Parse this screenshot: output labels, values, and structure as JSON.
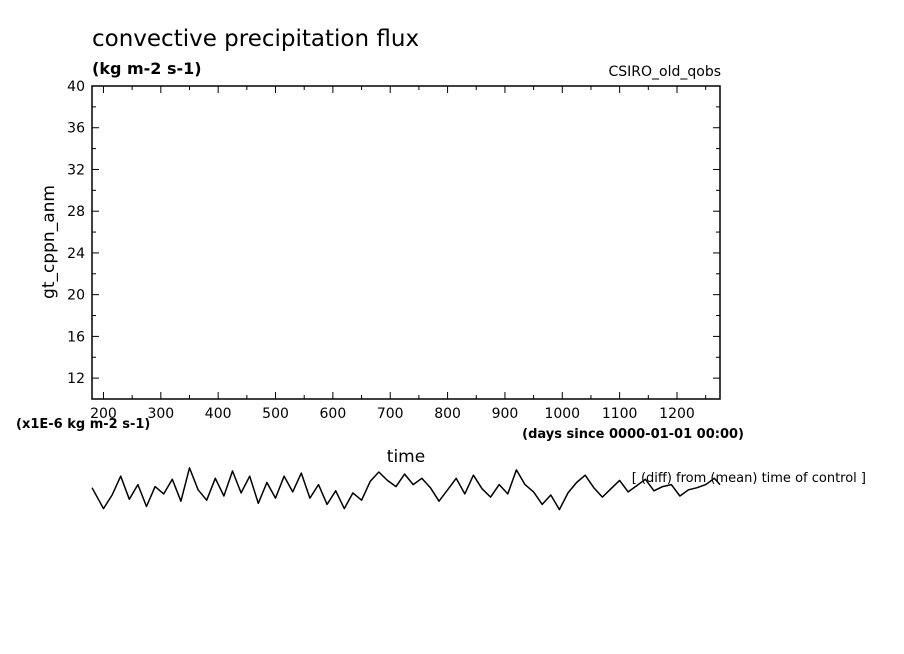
{
  "chart_data": {
    "type": "line",
    "title": "convective precipitation flux",
    "units_label": "(kg m-2 s-1)",
    "source_label": "CSIRO_old_qobs",
    "ylabel": "gt_cppn_anm",
    "xlabel": "time",
    "x_units": "(days since 0000-01-01 00:00)",
    "scale_note": "(x1E-6 kg m-2 s-1)",
    "diff_note": "[ (diff) from (mean) time of control ]",
    "xlim": [
      180,
      1275
    ],
    "ylim": [
      10,
      40
    ],
    "x_ticks": [
      200,
      300,
      400,
      500,
      600,
      700,
      800,
      900,
      1000,
      1100,
      1200
    ],
    "y_ticks": [
      12,
      16,
      20,
      24,
      28,
      32,
      36,
      40
    ],
    "grid": false,
    "series": [
      {
        "x": [
          180,
          200,
          215,
          230,
          245,
          260,
          275,
          290,
          305,
          320,
          335,
          350,
          365,
          380,
          395,
          410,
          425,
          440,
          455,
          470,
          485,
          500,
          515,
          530,
          545,
          560,
          575,
          590,
          605,
          620,
          635,
          650,
          665,
          680,
          695,
          710,
          725,
          740,
          755,
          770,
          785,
          800,
          815,
          830,
          845,
          860,
          875,
          890,
          905,
          920,
          935,
          950,
          965,
          980,
          995,
          1010,
          1025,
          1040,
          1055,
          1070,
          1085,
          1100,
          1115,
          1130,
          1145,
          1160,
          1175,
          1190,
          1205,
          1220,
          1235,
          1250,
          1265,
          1275
        ],
        "values": [
          1.5,
          -0.5,
          0.8,
          2.6,
          0.4,
          1.8,
          -0.3,
          1.6,
          0.9,
          2.3,
          0.2,
          3.4,
          1.3,
          0.3,
          2.4,
          0.7,
          3.1,
          1.0,
          2.6,
          0.0,
          2.0,
          0.5,
          2.6,
          1.1,
          2.9,
          0.5,
          1.8,
          -0.1,
          1.2,
          -0.5,
          1.0,
          0.3,
          2.1,
          3.0,
          2.2,
          1.6,
          2.8,
          1.8,
          2.4,
          1.5,
          0.2,
          1.3,
          2.4,
          0.9,
          2.7,
          1.4,
          0.6,
          1.8,
          0.9,
          3.2,
          1.8,
          1.1,
          -0.1,
          0.8,
          -0.6,
          1.0,
          2.0,
          2.7,
          1.5,
          0.6,
          1.4,
          2.2,
          1.1,
          1.7,
          2.3,
          1.2,
          1.6,
          1.8,
          0.7,
          1.3,
          1.5,
          1.8,
          2.4,
          1.8
        ]
      }
    ]
  }
}
